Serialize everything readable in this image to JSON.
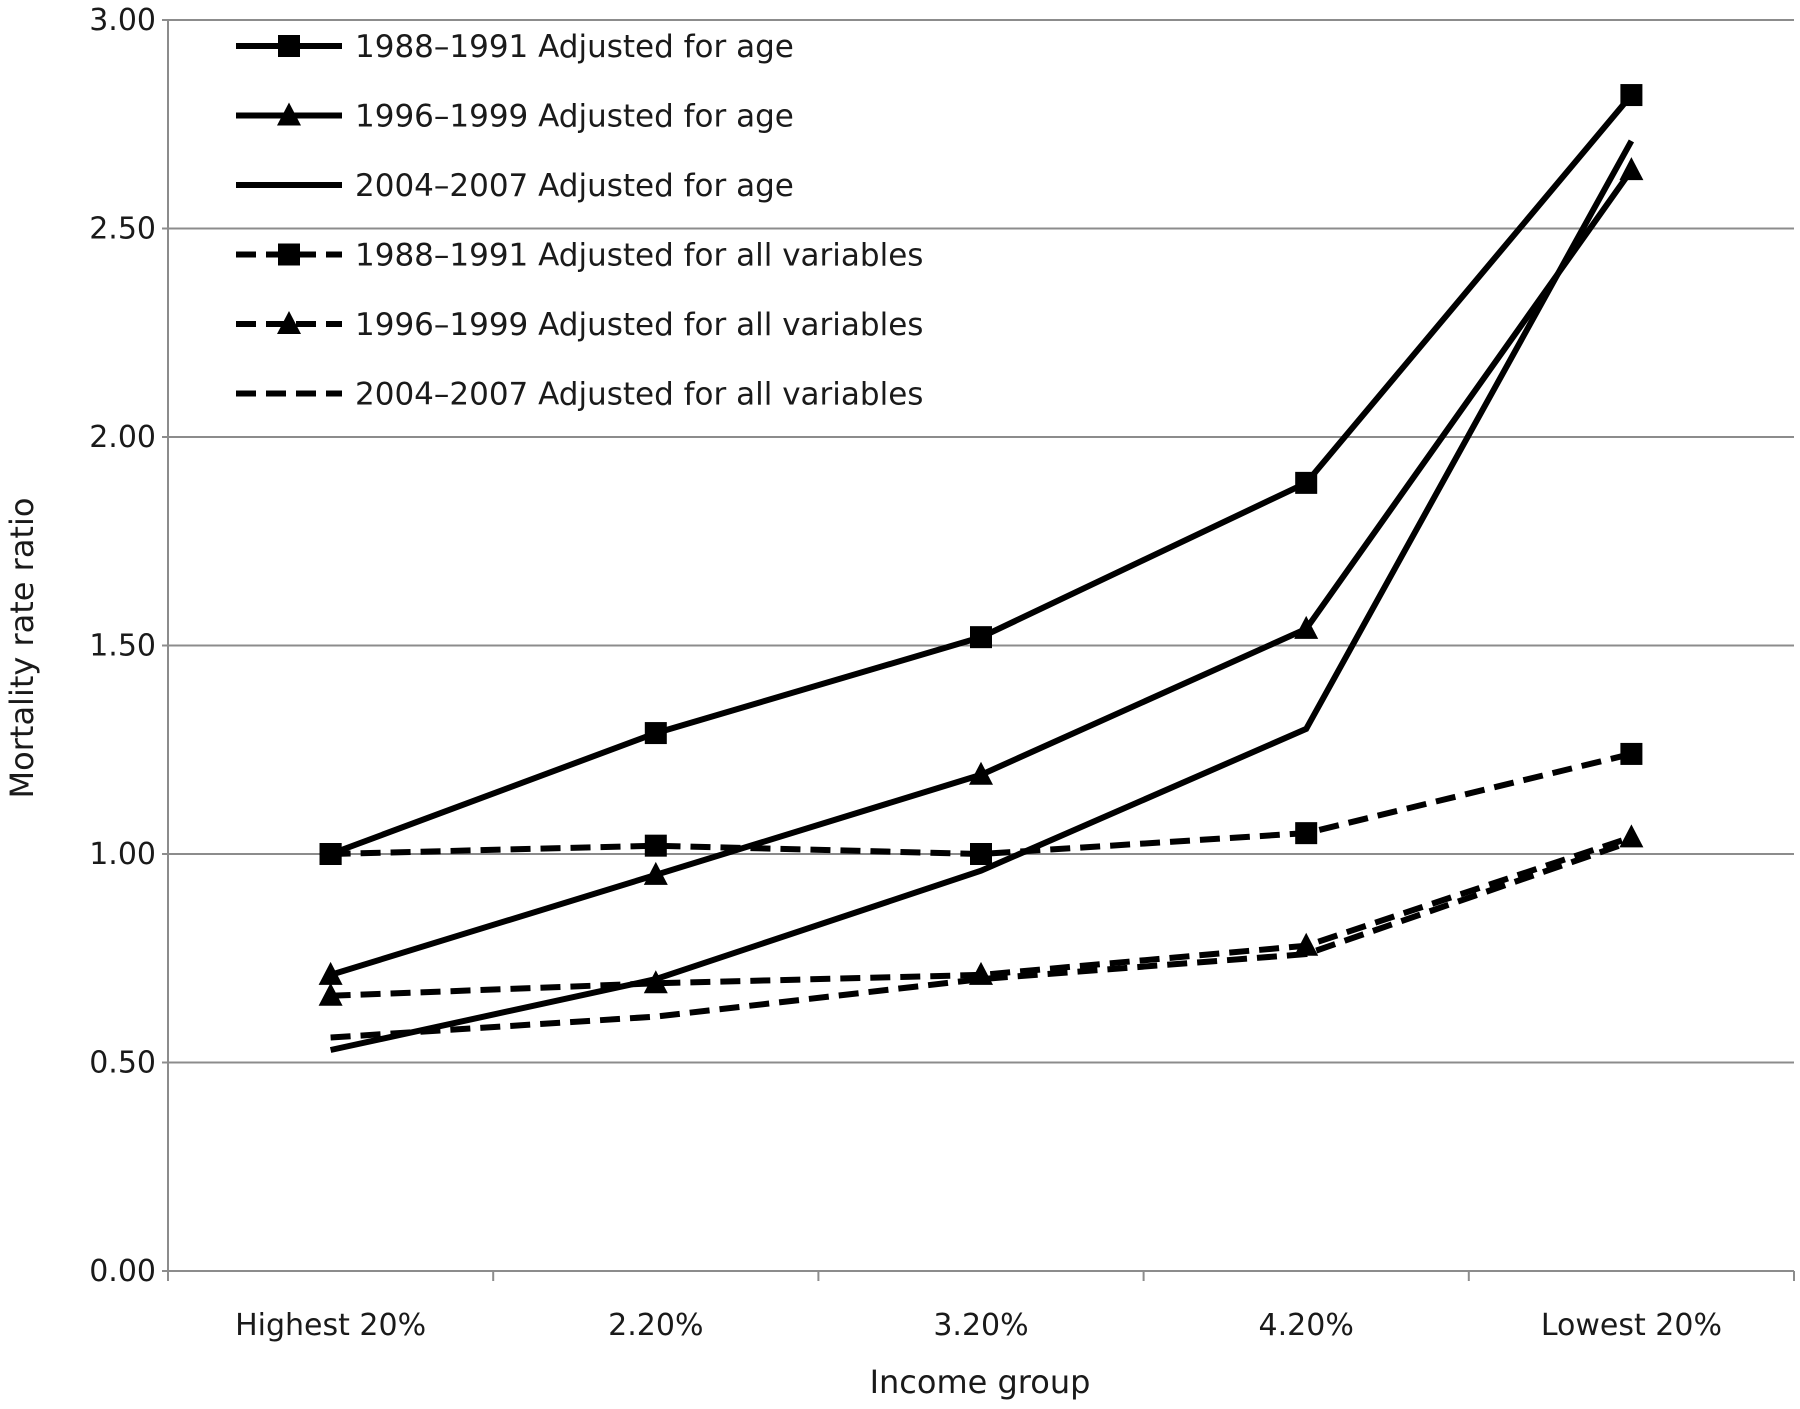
{
  "chart_data": {
    "type": "line",
    "title": "",
    "xlabel": "Income group",
    "ylabel": "Mortality rate ratio",
    "ylim": [
      0,
      3
    ],
    "yticks": [
      "0.00",
      "0.50",
      "1.00",
      "1.50",
      "2.00",
      "2.50",
      "3.00"
    ],
    "categories": [
      "Highest 20%",
      "2.20%",
      "3.20%",
      "4.20%",
      "Lowest 20%"
    ],
    "grid": "horizontal",
    "legend_position": "top-left",
    "series": [
      {
        "name": "1988–1991 Adjusted for age",
        "values": [
          1.0,
          1.29,
          1.52,
          1.89,
          2.82
        ],
        "line": "solid",
        "marker": "square"
      },
      {
        "name": "1996–1999 Adjusted for age",
        "values": [
          0.71,
          0.95,
          1.19,
          1.54,
          2.64
        ],
        "line": "solid",
        "marker": "triangle"
      },
      {
        "name": "2004–2007 Adjusted for age",
        "values": [
          0.53,
          0.7,
          0.96,
          1.3,
          2.71
        ],
        "line": "solid",
        "marker": "none"
      },
      {
        "name": "1988–1991 Adjusted for all variables",
        "values": [
          1.0,
          1.02,
          1.0,
          1.05,
          1.24
        ],
        "line": "dashed",
        "marker": "square"
      },
      {
        "name": "1996–1999 Adjusted for all variables",
        "values": [
          0.66,
          0.69,
          0.71,
          0.78,
          1.04
        ],
        "line": "dashed",
        "marker": "triangle"
      },
      {
        "name": "2004–2007 Adjusted for all variables",
        "values": [
          0.56,
          0.61,
          0.7,
          0.76,
          1.03
        ],
        "line": "dashed",
        "marker": "none"
      }
    ]
  }
}
